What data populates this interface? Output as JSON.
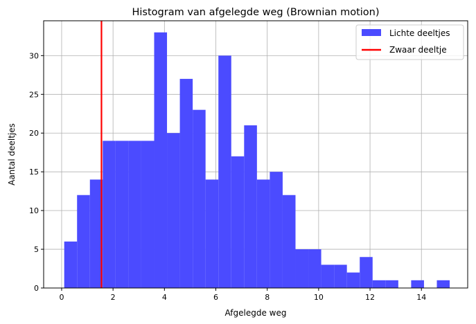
{
  "chart_data": {
    "type": "bar",
    "title": "Histogram van afgelegde weg (Brownian motion)",
    "xlabel": "Afgelegde weg",
    "ylabel": "Aantal deeltjes",
    "xlim": [
      -0.7,
      15.8
    ],
    "ylim": [
      0,
      34.5
    ],
    "xticks": [
      0,
      2,
      4,
      6,
      8,
      10,
      12,
      14
    ],
    "yticks": [
      0,
      5,
      10,
      15,
      20,
      25,
      30
    ],
    "grid": true,
    "legend_position": "top-right",
    "series": [
      {
        "name": "Lichte deeltjes",
        "kind": "histogram",
        "color": "#4b4bff",
        "bin_start": 0.1,
        "bin_width": 0.5,
        "counts": [
          6,
          12,
          14,
          19,
          19,
          19,
          19,
          33,
          20,
          27,
          23,
          14,
          30,
          17,
          21,
          14,
          15,
          12,
          5,
          5,
          3,
          3,
          2,
          4,
          1,
          1,
          0,
          1,
          0,
          1
        ]
      },
      {
        "name": "Zwaar deeltje",
        "kind": "vline",
        "color": "#ff0000",
        "x": 1.55
      }
    ]
  }
}
